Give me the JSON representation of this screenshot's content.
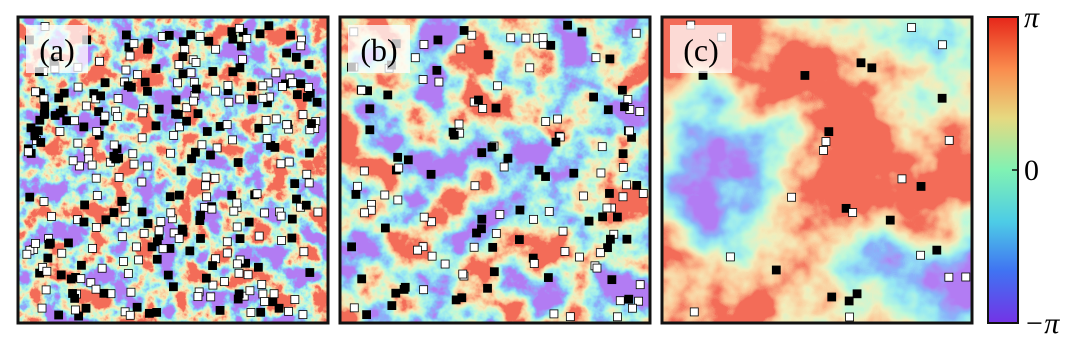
{
  "panels": [
    {
      "label": "(a)"
    },
    {
      "label": "(b)"
    },
    {
      "label": "(c)"
    }
  ],
  "colorbar": {
    "lim": [
      -3.14159,
      3.14159
    ],
    "ticks": [
      {
        "value": 3.14159,
        "label": "π"
      },
      0,
      {
        "value": -3.14159,
        "label": "−π"
      }
    ]
  }
}
